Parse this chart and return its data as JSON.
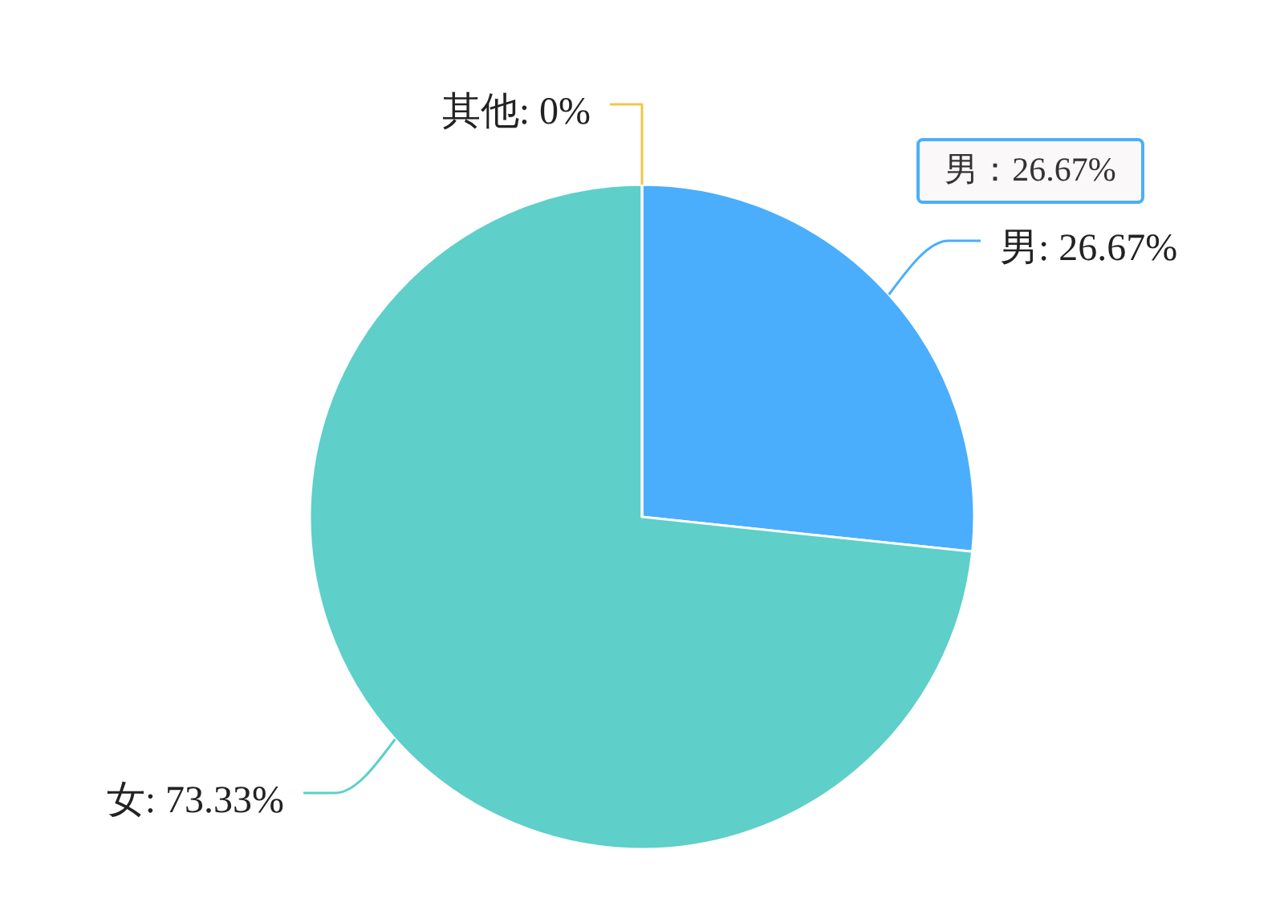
{
  "chart_data": {
    "type": "pie",
    "categories": [
      "男",
      "女",
      "其他"
    ],
    "values": [
      26.67,
      73.33,
      0
    ],
    "colors": [
      "#4aaefc",
      "#5ecfc9",
      "#f3c548"
    ],
    "value_labels": [
      ": 26.67%",
      ": 73.33%",
      ": 0%"
    ],
    "annotations": [
      "男：26.67%"
    ]
  }
}
